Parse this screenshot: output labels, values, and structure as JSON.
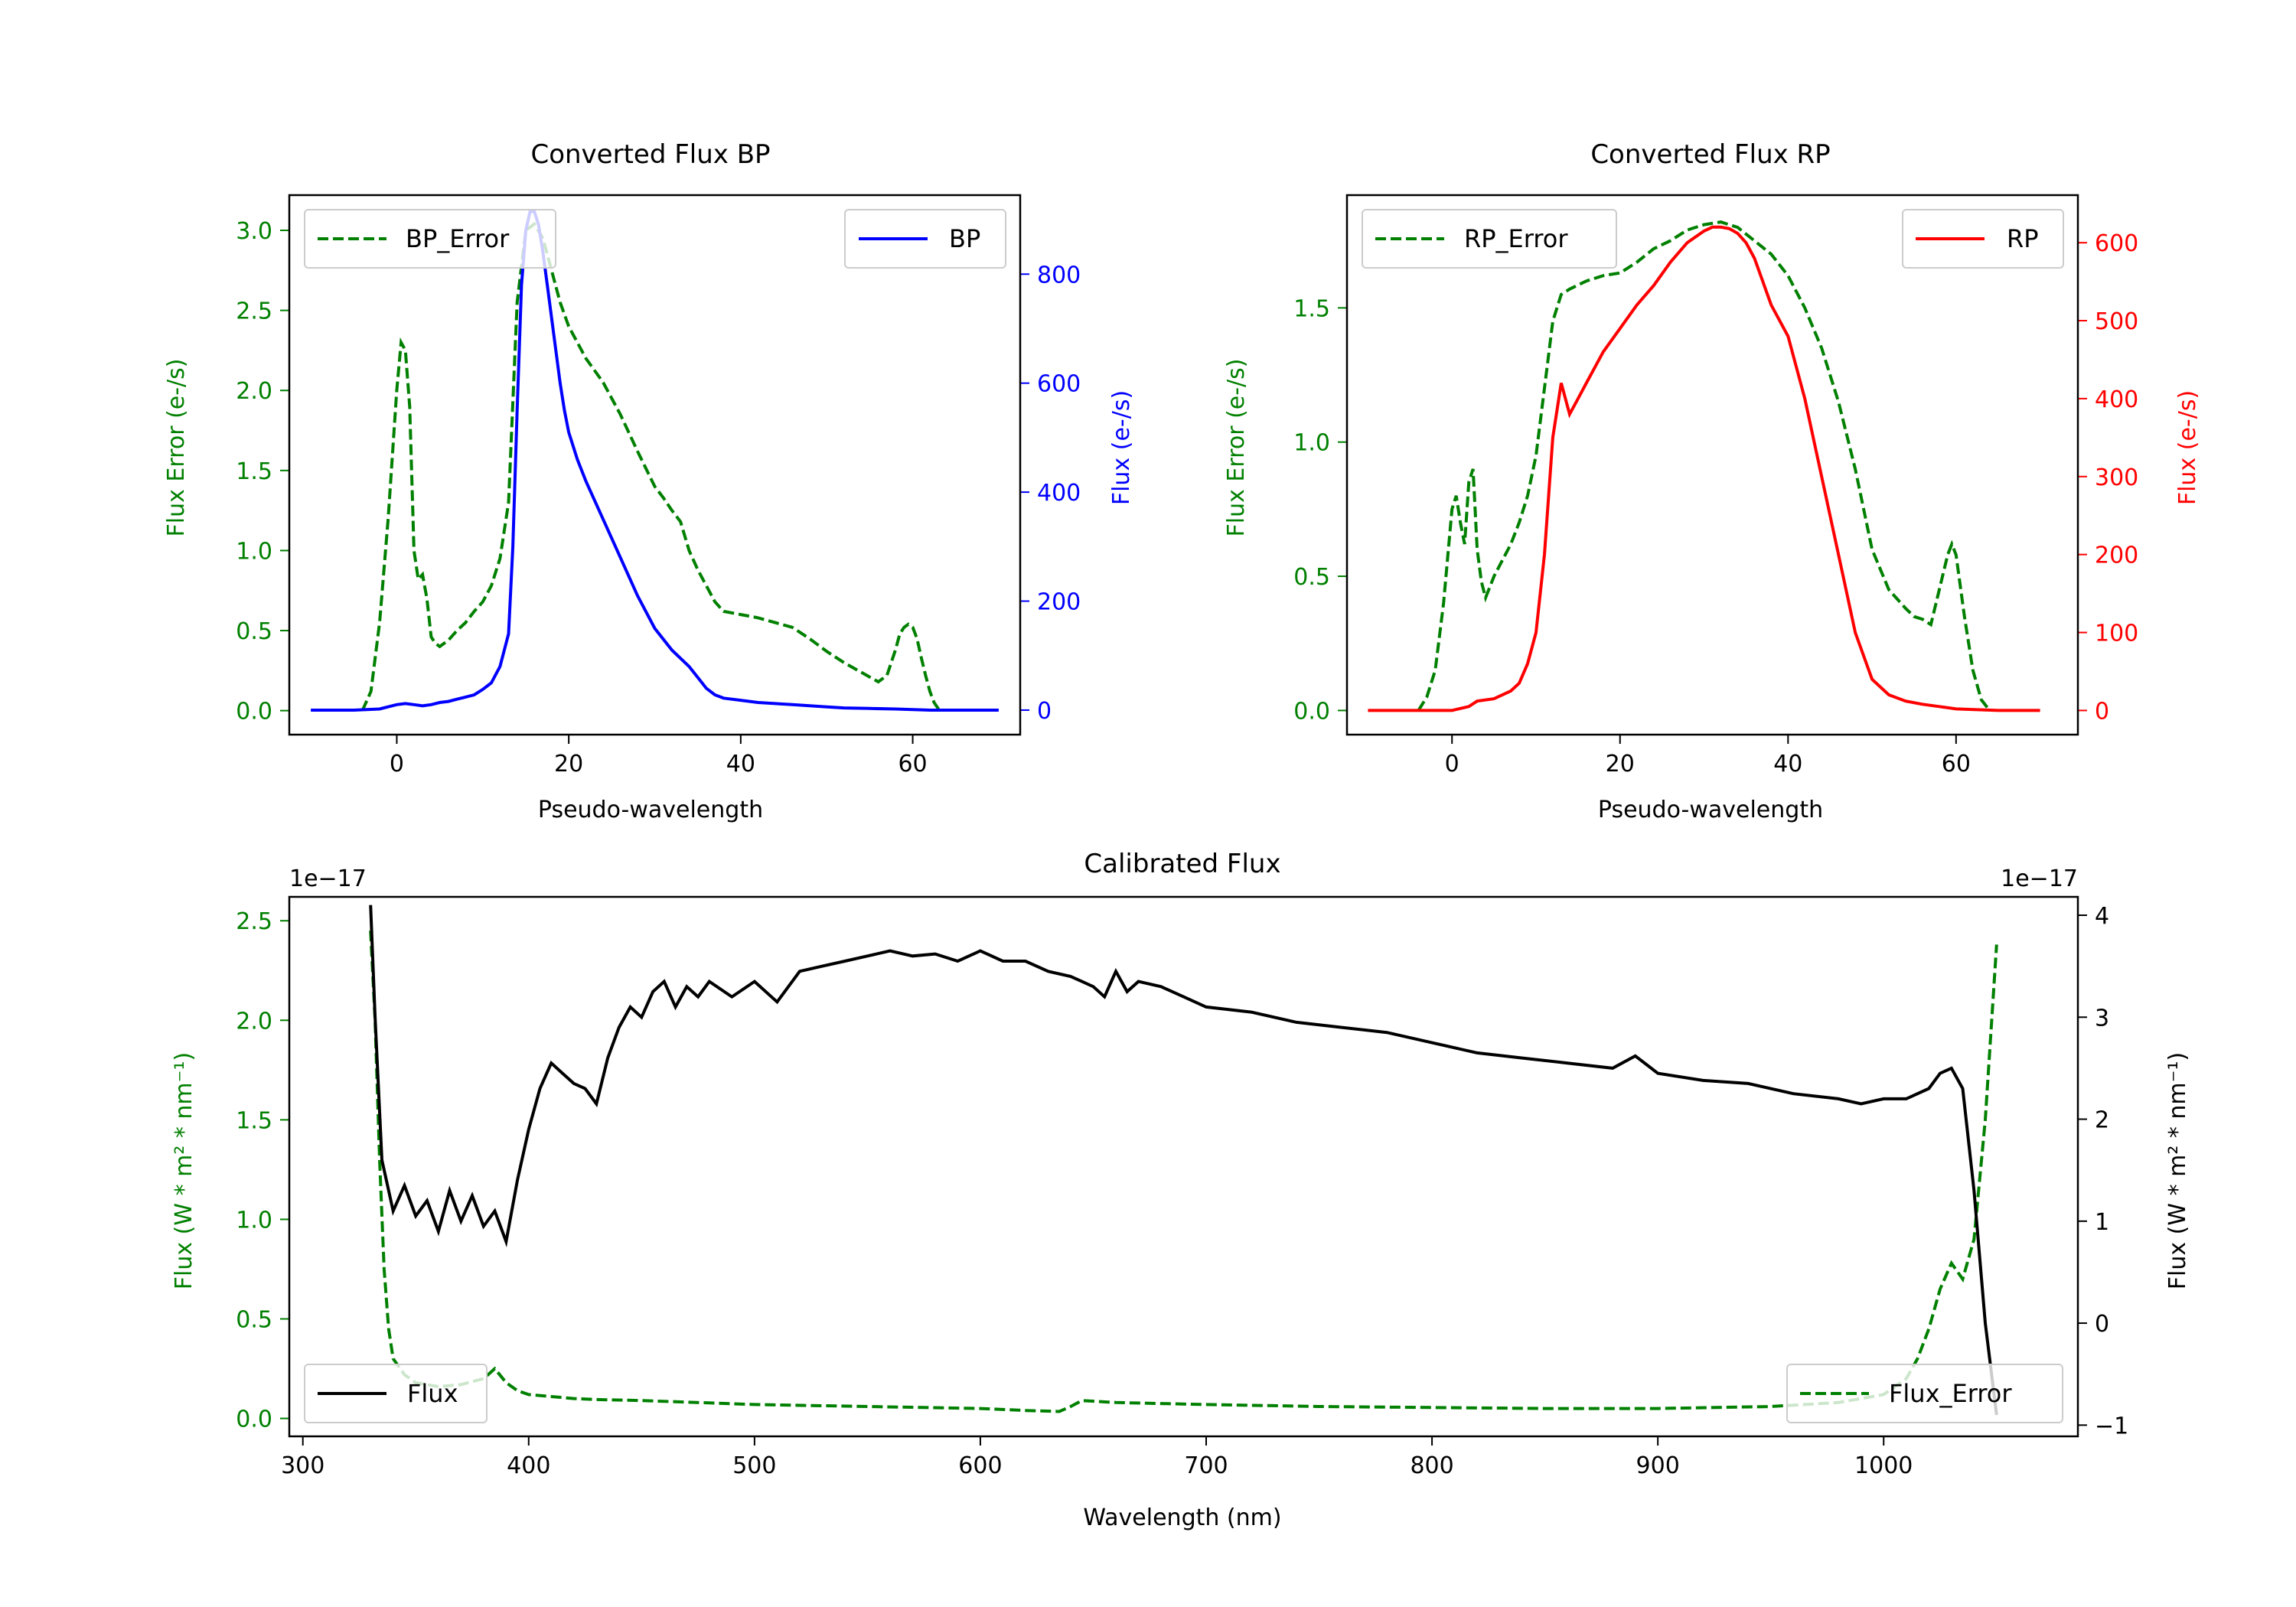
{
  "colors": {
    "bp": "#0000ff",
    "rp": "#ff0000",
    "error": "#008000",
    "flux": "#000000",
    "axis": "#000000",
    "legend_border": "#cccccc"
  },
  "chart_data": [
    {
      "id": "bp",
      "type": "line",
      "title": "Converted Flux BP",
      "xlabel": "Pseudo-wavelength",
      "ylabel_left": "Flux Error (e-/s)",
      "ylabel_right": "Flux (e-/s)",
      "xlim": [
        -12.5,
        72.5
      ],
      "ylim_left": [
        -0.15,
        3.22
      ],
      "ylim_right": [
        -45,
        945
      ],
      "xticks": [
        0,
        20,
        40,
        60
      ],
      "xtick_labels": [
        "0",
        "20",
        "40",
        "60"
      ],
      "yticks_left": [
        0.0,
        0.5,
        1.0,
        1.5,
        2.0,
        2.5,
        3.0
      ],
      "ytick_labels_left": [
        "0.0",
        "0.5",
        "1.0",
        "1.5",
        "2.0",
        "2.5",
        "3.0"
      ],
      "yticks_right": [
        0,
        200,
        400,
        600,
        800
      ],
      "ytick_labels_right": [
        "0",
        "200",
        "400",
        "600",
        "800"
      ],
      "legend_left": {
        "label": "BP_Error",
        "position": "upper left"
      },
      "legend_right": {
        "label": "BP",
        "position": "upper right"
      },
      "series": [
        {
          "name": "BP_Error",
          "axis": "left",
          "style": "dashed",
          "x": [
            -4,
            -3,
            -2,
            -1,
            0,
            0.5,
            1,
            1.5,
            2,
            2.5,
            3,
            3.5,
            4,
            4.5,
            5,
            6,
            7,
            8,
            9,
            10,
            11,
            12,
            13,
            14,
            15,
            16,
            17,
            18,
            19,
            20,
            22,
            24,
            26,
            28,
            30,
            31,
            32,
            33,
            34,
            35,
            36,
            37,
            38,
            40,
            42,
            44,
            46,
            48,
            50,
            52,
            54,
            56,
            57,
            58,
            58.5,
            59,
            59.5,
            60,
            60.5,
            61,
            61.5,
            62,
            62.5,
            63
          ],
          "y": [
            0.0,
            0.12,
            0.55,
            1.2,
            2.0,
            2.3,
            2.25,
            1.9,
            1.0,
            0.82,
            0.85,
            0.7,
            0.46,
            0.42,
            0.4,
            0.44,
            0.5,
            0.55,
            0.62,
            0.68,
            0.78,
            0.95,
            1.3,
            2.55,
            3.0,
            3.04,
            2.95,
            2.75,
            2.55,
            2.4,
            2.2,
            2.05,
            1.85,
            1.62,
            1.4,
            1.33,
            1.25,
            1.18,
            1.0,
            0.88,
            0.78,
            0.68,
            0.62,
            0.6,
            0.58,
            0.55,
            0.52,
            0.45,
            0.37,
            0.3,
            0.24,
            0.18,
            0.22,
            0.38,
            0.48,
            0.52,
            0.54,
            0.52,
            0.45,
            0.33,
            0.22,
            0.12,
            0.05,
            0.01
          ]
        },
        {
          "name": "BP",
          "axis": "right",
          "style": "solid",
          "x": [
            -10,
            -5,
            -2,
            0,
            1,
            2,
            3,
            4,
            5,
            6,
            7,
            8,
            9,
            10,
            11,
            12,
            13,
            13.5,
            14,
            14.5,
            15,
            15.5,
            16,
            16.5,
            17,
            17.5,
            18,
            18.5,
            19,
            19.5,
            20,
            21,
            22,
            24,
            26,
            28,
            30,
            32,
            34,
            35,
            36,
            37,
            38,
            40,
            42,
            44,
            46,
            48,
            50,
            52,
            55,
            58,
            60,
            62,
            65,
            70
          ],
          "y": [
            0,
            0,
            2,
            10,
            12,
            10,
            8,
            10,
            14,
            16,
            20,
            24,
            28,
            38,
            50,
            80,
            140,
            300,
            550,
            780,
            880,
            915,
            915,
            890,
            840,
            780,
            720,
            660,
            600,
            550,
            510,
            460,
            420,
            350,
            280,
            210,
            150,
            110,
            80,
            60,
            40,
            28,
            22,
            18,
            14,
            12,
            10,
            8,
            6,
            4,
            3,
            2,
            1,
            0,
            0,
            0
          ]
        }
      ]
    },
    {
      "id": "rp",
      "type": "line",
      "title": "Converted Flux RP",
      "xlabel": "Pseudo-wavelength",
      "ylabel_left": "Flux Error (e-/s)",
      "ylabel_right": "Flux (e-/s)",
      "xlim": [
        -12.5,
        74.5
      ],
      "ylim_left": [
        -0.09,
        1.92
      ],
      "ylim_right": [
        -31,
        661
      ],
      "xticks": [
        0,
        20,
        40,
        60
      ],
      "xtick_labels": [
        "0",
        "20",
        "40",
        "60"
      ],
      "yticks_left": [
        0.0,
        0.5,
        1.0,
        1.5
      ],
      "ytick_labels_left": [
        "0.0",
        "0.5",
        "1.0",
        "1.5"
      ],
      "yticks_right": [
        0,
        100,
        200,
        300,
        400,
        500,
        600
      ],
      "ytick_labels_right": [
        "0",
        "100",
        "200",
        "300",
        "400",
        "500",
        "600"
      ],
      "legend_left": {
        "label": "RP_Error",
        "position": "upper left"
      },
      "legend_right": {
        "label": "RP",
        "position": "upper right"
      },
      "series": [
        {
          "name": "RP_Error",
          "axis": "left",
          "style": "dashed",
          "x": [
            -4,
            -3,
            -2,
            -1,
            0,
            0.5,
            1,
            1.5,
            2,
            2.5,
            3,
            3.5,
            4,
            5,
            6,
            7,
            8,
            9,
            10,
            11,
            12,
            13,
            14,
            16,
            18,
            20,
            22,
            24,
            26,
            28,
            30,
            32,
            34,
            36,
            38,
            40,
            42,
            44,
            46,
            48,
            50,
            52,
            54,
            55,
            56,
            57,
            58,
            59,
            59.5,
            60,
            61,
            62,
            63,
            64
          ],
          "y": [
            0.0,
            0.05,
            0.15,
            0.4,
            0.75,
            0.8,
            0.7,
            0.62,
            0.85,
            0.9,
            0.6,
            0.48,
            0.42,
            0.5,
            0.56,
            0.62,
            0.7,
            0.8,
            0.95,
            1.2,
            1.45,
            1.55,
            1.57,
            1.6,
            1.62,
            1.63,
            1.67,
            1.72,
            1.75,
            1.79,
            1.81,
            1.82,
            1.8,
            1.75,
            1.7,
            1.62,
            1.5,
            1.35,
            1.15,
            0.9,
            0.6,
            0.45,
            0.38,
            0.35,
            0.34,
            0.32,
            0.45,
            0.58,
            0.62,
            0.58,
            0.35,
            0.15,
            0.04,
            0.0
          ]
        },
        {
          "name": "RP",
          "axis": "right",
          "style": "solid",
          "x": [
            -10,
            -5,
            0,
            2,
            3,
            5,
            7,
            8,
            9,
            10,
            11,
            12,
            13,
            14,
            15,
            16,
            17,
            18,
            20,
            22,
            24,
            26,
            28,
            30,
            31,
            32,
            33,
            34,
            35,
            36,
            37,
            38,
            40,
            42,
            44,
            46,
            48,
            50,
            52,
            54,
            56,
            58,
            60,
            65,
            70
          ],
          "y": [
            0,
            0,
            0,
            5,
            12,
            15,
            25,
            35,
            60,
            100,
            200,
            350,
            420,
            380,
            400,
            420,
            440,
            460,
            490,
            520,
            545,
            575,
            600,
            615,
            620,
            620,
            618,
            612,
            600,
            580,
            550,
            520,
            480,
            400,
            300,
            200,
            100,
            40,
            20,
            12,
            8,
            5,
            2,
            0,
            0
          ]
        }
      ]
    },
    {
      "id": "calibrated",
      "type": "line",
      "title": "Calibrated Flux",
      "xlabel": "Wavelength (nm)",
      "ylabel_left": "Flux (W * m² * nm⁻¹)",
      "ylabel_right": "Flux (W * m² * nm⁻¹)",
      "offset_left": "1e−17",
      "offset_right": "1e−17",
      "xlim": [
        294,
        1086
      ],
      "ylim_left": [
        -0.09,
        2.62
      ],
      "ylim_right": [
        -1.11,
        4.18
      ],
      "xticks": [
        300,
        400,
        500,
        600,
        700,
        800,
        900,
        1000
      ],
      "xtick_labels": [
        "300",
        "400",
        "500",
        "600",
        "700",
        "800",
        "900",
        "1000"
      ],
      "yticks_left": [
        0.0,
        0.5,
        1.0,
        1.5,
        2.0,
        2.5
      ],
      "ytick_labels_left": [
        "0.0",
        "0.5",
        "1.0",
        "1.5",
        "2.0",
        "2.5"
      ],
      "yticks_right": [
        -1,
        0,
        1,
        2,
        3,
        4
      ],
      "ytick_labels_right": [
        "−1",
        "0",
        "1",
        "2",
        "3",
        "4"
      ],
      "legend_left": {
        "label": "Flux",
        "position": "lower left"
      },
      "legend_right": {
        "label": "Flux_Error",
        "position": "lower right"
      },
      "series": [
        {
          "name": "Flux_Error",
          "axis": "left",
          "style": "dashed",
          "x": [
            330,
            332,
            334,
            336,
            338,
            340,
            345,
            350,
            360,
            370,
            380,
            385,
            390,
            395,
            400,
            410,
            420,
            430,
            450,
            500,
            550,
            600,
            620,
            635,
            640,
            645,
            660,
            700,
            750,
            800,
            850,
            900,
            950,
            980,
            1000,
            1010,
            1015,
            1020,
            1025,
            1030,
            1035,
            1040,
            1045,
            1050
          ],
          "y": [
            2.45,
            2.0,
            1.3,
            0.75,
            0.45,
            0.3,
            0.22,
            0.18,
            0.16,
            0.17,
            0.2,
            0.25,
            0.18,
            0.14,
            0.12,
            0.11,
            0.1,
            0.095,
            0.09,
            0.07,
            0.06,
            0.05,
            0.04,
            0.035,
            0.06,
            0.09,
            0.08,
            0.07,
            0.06,
            0.055,
            0.05,
            0.05,
            0.06,
            0.08,
            0.12,
            0.2,
            0.3,
            0.45,
            0.65,
            0.78,
            0.7,
            0.9,
            1.5,
            2.38
          ]
        },
        {
          "name": "Flux",
          "axis": "right",
          "style": "solid",
          "x": [
            330,
            332,
            335,
            340,
            345,
            350,
            355,
            360,
            365,
            370,
            375,
            380,
            385,
            390,
            395,
            400,
            405,
            410,
            415,
            420,
            425,
            430,
            435,
            440,
            445,
            450,
            455,
            460,
            465,
            470,
            475,
            480,
            490,
            500,
            510,
            520,
            530,
            540,
            550,
            560,
            570,
            580,
            590,
            600,
            610,
            620,
            630,
            640,
            645,
            650,
            655,
            660,
            665,
            670,
            680,
            690,
            700,
            720,
            740,
            760,
            780,
            800,
            820,
            840,
            860,
            880,
            890,
            900,
            920,
            940,
            960,
            980,
            990,
            1000,
            1010,
            1020,
            1025,
            1030,
            1035,
            1040,
            1045,
            1050
          ],
          "y": [
            4.1,
            3.0,
            1.6,
            1.1,
            1.35,
            1.05,
            1.2,
            0.9,
            1.3,
            1.0,
            1.25,
            0.95,
            1.1,
            0.8,
            1.4,
            1.9,
            2.3,
            2.55,
            2.45,
            2.35,
            2.3,
            2.15,
            2.6,
            2.9,
            3.1,
            3.0,
            3.25,
            3.35,
            3.1,
            3.3,
            3.2,
            3.35,
            3.2,
            3.35,
            3.15,
            3.45,
            3.5,
            3.55,
            3.6,
            3.65,
            3.6,
            3.62,
            3.55,
            3.65,
            3.55,
            3.55,
            3.45,
            3.4,
            3.35,
            3.3,
            3.2,
            3.45,
            3.25,
            3.35,
            3.3,
            3.2,
            3.1,
            3.05,
            2.95,
            2.9,
            2.85,
            2.75,
            2.65,
            2.6,
            2.55,
            2.5,
            2.62,
            2.45,
            2.38,
            2.35,
            2.25,
            2.2,
            2.15,
            2.2,
            2.2,
            2.3,
            2.45,
            2.5,
            2.3,
            1.3,
            0.0,
            -0.9
          ]
        }
      ]
    }
  ]
}
